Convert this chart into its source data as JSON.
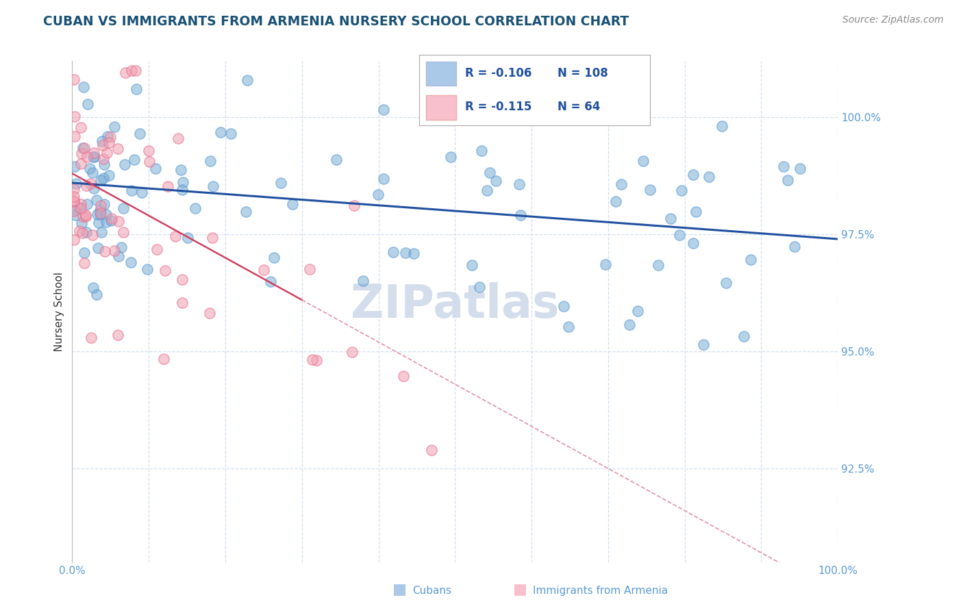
{
  "title": "CUBAN VS IMMIGRANTS FROM ARMENIA NURSERY SCHOOL CORRELATION CHART",
  "source_text": "Source: ZipAtlas.com",
  "ylabel": "Nursery School",
  "xlim": [
    0.0,
    100.0
  ],
  "ylim": [
    90.5,
    101.2
  ],
  "yticks": [
    92.5,
    95.0,
    97.5,
    100.0
  ],
  "ytick_labels": [
    "92.5%",
    "95.0%",
    "97.5%",
    "100.0%"
  ],
  "xticks": [
    0.0,
    10.0,
    20.0,
    30.0,
    40.0,
    50.0,
    60.0,
    70.0,
    80.0,
    90.0,
    100.0
  ],
  "xtick_labels": [
    "0.0%",
    "",
    "",
    "",
    "",
    "",
    "",
    "",
    "",
    "",
    "100.0%"
  ],
  "title_color": "#1a5276",
  "source_color": "#888888",
  "axis_color": "#5b9bd5",
  "tick_color": "#5b9bd5",
  "grid_color": "#d0dff0",
  "watermark_text": "ZIPatlas",
  "watermark_color": "#ccd8e8",
  "legend_R1": "-0.106",
  "legend_N1": "108",
  "legend_R2": "-0.115",
  "legend_N2": "64",
  "blue_dot_color": "#7aadd4",
  "pink_dot_color": "#f0a0b0",
  "blue_edge_color": "#5b9bd5",
  "pink_edge_color": "#e87090",
  "blue_fill_legend": "#aac8e8",
  "pink_fill_legend": "#f8c0cc",
  "trend_blue_color": "#2050a0",
  "trend_pink_color": "#d04060",
  "trend_pink_dash_color": "#e090a8",
  "blue_intercept": 98.6,
  "blue_slope": -0.012,
  "pink_solid_x0": 0.0,
  "pink_solid_x1": 30.0,
  "pink_intercept": 98.8,
  "pink_slope": -0.09,
  "bottom_legend_cubans": "Cubans",
  "bottom_legend_armenia": "Immigrants from Armenia"
}
